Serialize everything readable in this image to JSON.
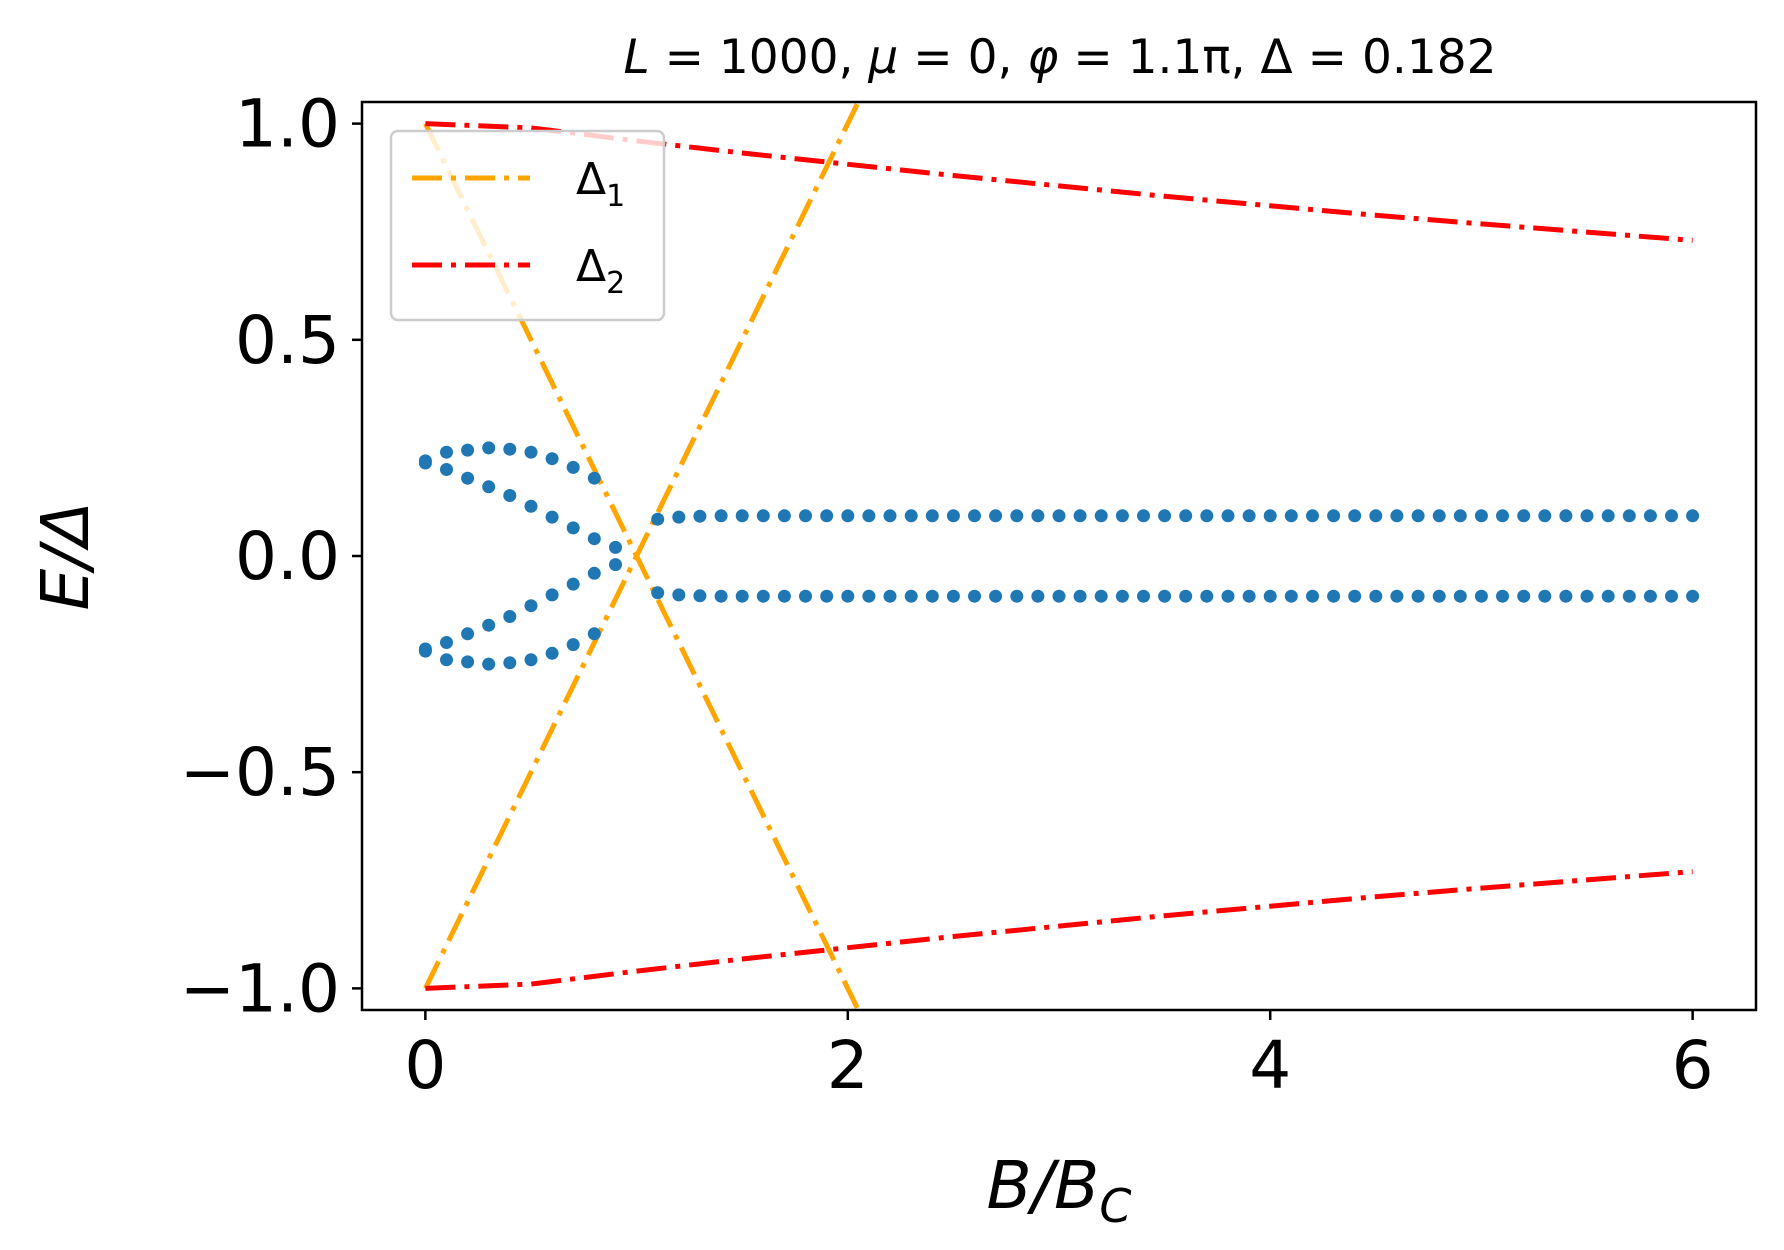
{
  "chart_data": {
    "type": "scatter",
    "title": "L = 1000, μ = 0, φ = 1.1π, Δ = 0.182",
    "title_parts": {
      "L": "L",
      "L_val": " = 1000, ",
      "mu": "μ",
      "mu_val": " = 0, ",
      "phi": "φ",
      "phi_val": " = 1.1π, Δ = 0.182"
    },
    "xlabel": "B/B",
    "xlabel_sub": "C",
    "ylabel": "E/Δ",
    "xlim": [
      -0.3,
      6.3
    ],
    "ylim": [
      -1.05,
      1.05
    ],
    "xticks": [
      {
        "value": 0,
        "label": "0"
      },
      {
        "value": 2,
        "label": "2"
      },
      {
        "value": 4,
        "label": "4"
      },
      {
        "value": 6,
        "label": "6"
      }
    ],
    "yticks": [
      {
        "value": 1.0,
        "label": "1.0"
      },
      {
        "value": 0.5,
        "label": "0.5"
      },
      {
        "value": 0.0,
        "label": "0.0"
      },
      {
        "value": -0.5,
        "label": "−0.5"
      },
      {
        "value": -1.0,
        "label": "−1.0"
      }
    ],
    "grid": false,
    "legend_position": "top-left",
    "legend": [
      {
        "label": "Δ",
        "sub": "1",
        "color": "#ffa500"
      },
      {
        "label": "Δ",
        "sub": "2",
        "color": "#ff0000"
      }
    ],
    "series": [
      {
        "name": "Δ1",
        "kind": "line",
        "color": "#ffa500",
        "x": [
          0,
          2.05
        ],
        "y": [
          -1.0,
          1.05
        ]
      },
      {
        "kind": "line",
        "color": "#ffa500",
        "x": [
          0,
          2.05
        ],
        "y": [
          1.0,
          -1.05
        ]
      },
      {
        "name": "Δ2",
        "kind": "line",
        "color": "#ff0000",
        "x": [
          0,
          0.5,
          1,
          1.5,
          2,
          2.5,
          3,
          3.5,
          4,
          4.5,
          5,
          5.5,
          6
        ],
        "y": [
          1.0,
          0.99,
          0.96,
          0.932,
          0.906,
          0.88,
          0.856,
          0.832,
          0.81,
          0.788,
          0.768,
          0.749,
          0.73
        ]
      },
      {
        "kind": "line",
        "color": "#ff0000",
        "x": [
          0,
          0.5,
          1,
          1.5,
          2,
          2.5,
          3,
          3.5,
          4,
          4.5,
          5,
          5.5,
          6
        ],
        "y": [
          -1.0,
          -0.99,
          -0.96,
          -0.932,
          -0.906,
          -0.88,
          -0.856,
          -0.832,
          -0.81,
          -0.788,
          -0.768,
          -0.749,
          -0.73
        ]
      },
      {
        "kind": "points",
        "color": "#1f77b4",
        "x": [
          0,
          0.1,
          0.2,
          0.3,
          0.4,
          0.5,
          0.6,
          0.7,
          0.8
        ],
        "y": [
          0.22,
          0.24,
          0.245,
          0.25,
          0.247,
          0.24,
          0.225,
          0.205,
          0.18
        ]
      },
      {
        "kind": "points",
        "color": "#1f77b4",
        "x": [
          0,
          0.1,
          0.2,
          0.3,
          0.4,
          0.5,
          0.6,
          0.7,
          0.8,
          0.9
        ],
        "y": [
          0.215,
          0.2,
          0.18,
          0.16,
          0.14,
          0.115,
          0.09,
          0.065,
          0.04,
          0.02
        ]
      },
      {
        "kind": "points",
        "color": "#1f77b4",
        "x": [
          0,
          0.1,
          0.2,
          0.3,
          0.4,
          0.5,
          0.6,
          0.7,
          0.8,
          0.9
        ],
        "y": [
          -0.215,
          -0.2,
          -0.18,
          -0.16,
          -0.14,
          -0.115,
          -0.09,
          -0.065,
          -0.04,
          -0.02
        ]
      },
      {
        "kind": "points",
        "color": "#1f77b4",
        "x": [
          0,
          0.1,
          0.2,
          0.3,
          0.4,
          0.5,
          0.6,
          0.7,
          0.8
        ],
        "y": [
          -0.22,
          -0.24,
          -0.245,
          -0.25,
          -0.247,
          -0.24,
          -0.225,
          -0.205,
          -0.18
        ]
      },
      {
        "kind": "points",
        "color": "#1f77b4",
        "x": [
          1.1,
          1.2,
          1.3,
          1.4,
          1.5,
          1.6,
          1.7,
          1.8,
          1.9,
          2.0,
          2.1,
          2.2,
          2.3,
          2.4,
          2.5,
          2.6,
          2.7,
          2.8,
          2.9,
          3.0,
          3.1,
          3.2,
          3.3,
          3.4,
          3.5,
          3.6,
          3.7,
          3.8,
          3.9,
          4.0,
          4.1,
          4.2,
          4.3,
          4.4,
          4.5,
          4.6,
          4.7,
          4.8,
          4.9,
          5.0,
          5.1,
          5.2,
          5.3,
          5.4,
          5.5,
          5.6,
          5.7,
          5.8,
          5.9,
          6.0
        ],
        "y": [
          0.085,
          0.09,
          0.092,
          0.093,
          0.093,
          0.093,
          0.093,
          0.093,
          0.093,
          0.093,
          0.093,
          0.093,
          0.093,
          0.093,
          0.093,
          0.093,
          0.093,
          0.093,
          0.093,
          0.093,
          0.093,
          0.093,
          0.093,
          0.093,
          0.093,
          0.093,
          0.093,
          0.093,
          0.093,
          0.093,
          0.093,
          0.093,
          0.093,
          0.093,
          0.093,
          0.093,
          0.093,
          0.093,
          0.093,
          0.093,
          0.093,
          0.093,
          0.093,
          0.093,
          0.093,
          0.093,
          0.093,
          0.093,
          0.093,
          0.093
        ]
      },
      {
        "kind": "points",
        "color": "#1f77b4",
        "x": [
          1.1,
          1.2,
          1.3,
          1.4,
          1.5,
          1.6,
          1.7,
          1.8,
          1.9,
          2.0,
          2.1,
          2.2,
          2.3,
          2.4,
          2.5,
          2.6,
          2.7,
          2.8,
          2.9,
          3.0,
          3.1,
          3.2,
          3.3,
          3.4,
          3.5,
          3.6,
          3.7,
          3.8,
          3.9,
          4.0,
          4.1,
          4.2,
          4.3,
          4.4,
          4.5,
          4.6,
          4.7,
          4.8,
          4.9,
          5.0,
          5.1,
          5.2,
          5.3,
          5.4,
          5.5,
          5.6,
          5.7,
          5.8,
          5.9,
          6.0
        ],
        "y": [
          -0.085,
          -0.09,
          -0.092,
          -0.093,
          -0.093,
          -0.093,
          -0.093,
          -0.093,
          -0.093,
          -0.093,
          -0.093,
          -0.093,
          -0.093,
          -0.093,
          -0.093,
          -0.093,
          -0.093,
          -0.093,
          -0.093,
          -0.093,
          -0.093,
          -0.093,
          -0.093,
          -0.093,
          -0.093,
          -0.093,
          -0.093,
          -0.093,
          -0.093,
          -0.093,
          -0.093,
          -0.093,
          -0.093,
          -0.093,
          -0.093,
          -0.093,
          -0.093,
          -0.093,
          -0.093,
          -0.093,
          -0.093,
          -0.093,
          -0.093,
          -0.093,
          -0.093,
          -0.093,
          -0.093,
          -0.093,
          -0.093,
          -0.093
        ]
      }
    ]
  }
}
